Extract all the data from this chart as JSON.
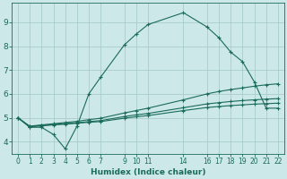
{
  "background_color": "#cce8e8",
  "grid_color": "#aacccc",
  "line_color": "#1a6b5a",
  "xlabel": "Humidex (Indice chaleur)",
  "xlim": [
    -0.5,
    22.5
  ],
  "ylim": [
    3.5,
    9.8
  ],
  "xticks": [
    0,
    1,
    2,
    3,
    4,
    5,
    6,
    7,
    9,
    10,
    11,
    14,
    16,
    17,
    18,
    19,
    20,
    21,
    22
  ],
  "yticks": [
    4,
    5,
    6,
    7,
    8,
    9
  ],
  "curve1_x": [
    0,
    1,
    2,
    3,
    4,
    5,
    6,
    7,
    9,
    10,
    11,
    14,
    16,
    17,
    18,
    19,
    20,
    21,
    22
  ],
  "curve1_y": [
    5.0,
    4.6,
    4.6,
    4.3,
    3.7,
    4.65,
    6.0,
    6.7,
    8.05,
    8.5,
    8.9,
    9.4,
    8.8,
    8.35,
    7.75,
    7.35,
    6.5,
    5.4,
    5.4
  ],
  "line2_x": [
    0,
    1,
    2,
    3,
    4,
    5,
    6,
    7,
    9,
    10,
    11,
    14,
    16,
    17,
    18,
    19,
    20,
    21,
    22
  ],
  "line2_y": [
    5.0,
    4.65,
    4.7,
    4.75,
    4.8,
    4.85,
    4.92,
    4.98,
    5.2,
    5.3,
    5.4,
    5.75,
    6.0,
    6.1,
    6.18,
    6.25,
    6.32,
    6.38,
    6.42
  ],
  "line3_x": [
    0,
    1,
    2,
    3,
    4,
    5,
    6,
    7,
    9,
    10,
    11,
    14,
    16,
    17,
    18,
    19,
    20,
    21,
    22
  ],
  "line3_y": [
    5.0,
    4.63,
    4.68,
    4.72,
    4.75,
    4.79,
    4.84,
    4.88,
    5.05,
    5.12,
    5.18,
    5.42,
    5.58,
    5.63,
    5.68,
    5.72,
    5.75,
    5.78,
    5.8
  ],
  "line4_x": [
    0,
    1,
    2,
    3,
    4,
    5,
    6,
    7,
    9,
    10,
    11,
    14,
    16,
    17,
    18,
    19,
    20,
    21,
    22
  ],
  "line4_y": [
    5.0,
    4.62,
    4.66,
    4.7,
    4.73,
    4.77,
    4.81,
    4.84,
    4.98,
    5.04,
    5.09,
    5.3,
    5.43,
    5.47,
    5.51,
    5.54,
    5.57,
    5.59,
    5.61
  ]
}
